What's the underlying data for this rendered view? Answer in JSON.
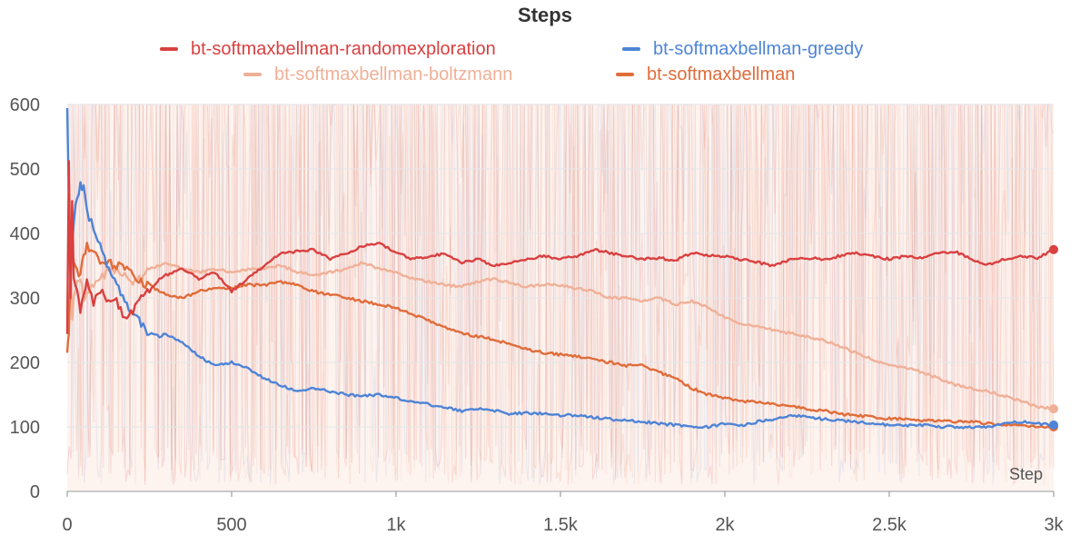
{
  "chart_data": {
    "type": "line",
    "title": "Steps",
    "xlabel": "Step",
    "ylabel": "",
    "xlim": [
      0,
      3000
    ],
    "ylim": [
      0,
      600
    ],
    "x_ticks": [
      {
        "value": 0,
        "label": "0"
      },
      {
        "value": 500,
        "label": "500"
      },
      {
        "value": 1000,
        "label": "1k"
      },
      {
        "value": 1500,
        "label": "1.5k"
      },
      {
        "value": 2000,
        "label": "2k"
      },
      {
        "value": 2500,
        "label": "2.5k"
      },
      {
        "value": 3000,
        "label": "3k"
      }
    ],
    "y_ticks": [
      {
        "value": 0,
        "label": "0"
      },
      {
        "value": 100,
        "label": "100"
      },
      {
        "value": 200,
        "label": "200"
      },
      {
        "value": 300,
        "label": "300"
      },
      {
        "value": 400,
        "label": "400"
      },
      {
        "value": 500,
        "label": "500"
      },
      {
        "value": 600,
        "label": "600"
      }
    ],
    "grid": true,
    "legend_position": "top",
    "series": [
      {
        "name": "bt-softmaxbellman-randomexploration",
        "color": "#d94040",
        "x": [
          0,
          5,
          10,
          15,
          20,
          30,
          40,
          50,
          60,
          80,
          100,
          120,
          150,
          175,
          200,
          225,
          250,
          280,
          300,
          350,
          400,
          450,
          500,
          550,
          600,
          650,
          700,
          750,
          800,
          850,
          900,
          950,
          1000,
          1050,
          1100,
          1150,
          1200,
          1250,
          1300,
          1350,
          1400,
          1450,
          1500,
          1550,
          1600,
          1650,
          1700,
          1750,
          1800,
          1850,
          1900,
          1950,
          2000,
          2050,
          2100,
          2150,
          2200,
          2250,
          2300,
          2350,
          2400,
          2450,
          2500,
          2550,
          2600,
          2650,
          2700,
          2750,
          2800,
          2850,
          2900,
          2950,
          3000
        ],
        "y": [
          250,
          510,
          300,
          450,
          330,
          310,
          280,
          300,
          330,
          290,
          310,
          300,
          295,
          270,
          280,
          300,
          310,
          330,
          335,
          345,
          330,
          340,
          310,
          330,
          350,
          370,
          372,
          375,
          360,
          370,
          380,
          385,
          370,
          360,
          365,
          368,
          355,
          360,
          350,
          355,
          360,
          365,
          360,
          365,
          375,
          370,
          365,
          360,
          362,
          358,
          370,
          365,
          365,
          360,
          355,
          350,
          360,
          362,
          360,
          365,
          370,
          365,
          360,
          365,
          362,
          370,
          372,
          360,
          352,
          360,
          365,
          362,
          375
        ]
      },
      {
        "name": "bt-softmaxbellman-greedy",
        "color": "#4e84d6",
        "x": [
          0,
          5,
          10,
          20,
          30,
          40,
          50,
          60,
          80,
          100,
          120,
          150,
          175,
          200,
          225,
          250,
          280,
          300,
          350,
          400,
          450,
          500,
          550,
          600,
          650,
          700,
          750,
          800,
          850,
          900,
          950,
          1000,
          1050,
          1100,
          1150,
          1200,
          1250,
          1300,
          1350,
          1400,
          1450,
          1500,
          1550,
          1600,
          1650,
          1700,
          1750,
          1800,
          1850,
          1900,
          1950,
          2000,
          2050,
          2100,
          2150,
          2200,
          2250,
          2300,
          2350,
          2400,
          2450,
          2500,
          2550,
          2600,
          2650,
          2700,
          2750,
          2800,
          2850,
          2900,
          2950,
          3000
        ],
        "y": [
          600,
          460,
          340,
          420,
          460,
          475,
          470,
          430,
          410,
          380,
          350,
          320,
          295,
          275,
          260,
          245,
          240,
          245,
          230,
          210,
          195,
          200,
          190,
          175,
          165,
          155,
          160,
          155,
          150,
          148,
          150,
          145,
          140,
          135,
          130,
          125,
          128,
          125,
          120,
          122,
          120,
          118,
          118,
          115,
          112,
          110,
          108,
          105,
          103,
          100,
          100,
          105,
          102,
          108,
          112,
          118,
          115,
          112,
          110,
          108,
          105,
          103,
          102,
          103,
          100,
          100,
          100,
          100,
          105,
          108,
          105,
          103
        ]
      },
      {
        "name": "bt-softmaxbellman-boltzmann",
        "color": "#f0b097",
        "x": [
          0,
          5,
          10,
          15,
          20,
          30,
          40,
          50,
          60,
          80,
          100,
          120,
          150,
          175,
          200,
          225,
          250,
          280,
          300,
          350,
          400,
          450,
          500,
          550,
          600,
          650,
          700,
          750,
          800,
          850,
          900,
          950,
          1000,
          1050,
          1100,
          1150,
          1200,
          1250,
          1300,
          1350,
          1400,
          1450,
          1500,
          1550,
          1600,
          1650,
          1700,
          1750,
          1800,
          1850,
          1900,
          1950,
          2000,
          2050,
          2100,
          2150,
          2200,
          2250,
          2300,
          2350,
          2400,
          2450,
          2500,
          2550,
          2600,
          2650,
          2700,
          2750,
          2800,
          2850,
          2900,
          2950,
          3000
        ],
        "y": [
          300,
          280,
          340,
          260,
          300,
          320,
          330,
          300,
          310,
          320,
          330,
          340,
          345,
          335,
          320,
          330,
          345,
          350,
          355,
          345,
          340,
          345,
          340,
          345,
          345,
          350,
          340,
          335,
          340,
          345,
          355,
          345,
          340,
          330,
          325,
          320,
          318,
          325,
          330,
          322,
          318,
          320,
          320,
          315,
          310,
          300,
          300,
          295,
          300,
          290,
          295,
          285,
          270,
          260,
          255,
          250,
          245,
          240,
          235,
          225,
          215,
          205,
          195,
          192,
          185,
          175,
          165,
          160,
          155,
          148,
          140,
          132,
          128
        ]
      },
      {
        "name": "bt-softmaxbellman",
        "color": "#e06c3a",
        "x": [
          0,
          5,
          10,
          15,
          20,
          30,
          40,
          50,
          60,
          80,
          100,
          120,
          150,
          175,
          200,
          225,
          250,
          280,
          300,
          350,
          400,
          450,
          500,
          550,
          600,
          650,
          700,
          750,
          800,
          850,
          900,
          950,
          1000,
          1050,
          1100,
          1150,
          1200,
          1250,
          1300,
          1350,
          1400,
          1450,
          1500,
          1550,
          1600,
          1650,
          1700,
          1750,
          1800,
          1850,
          1900,
          1950,
          2000,
          2050,
          2100,
          2150,
          2200,
          2250,
          2300,
          2350,
          2400,
          2450,
          2500,
          2550,
          2600,
          2650,
          2700,
          2750,
          2800,
          2850,
          2900,
          2950,
          3000
        ],
        "y": [
          220,
          250,
          330,
          380,
          360,
          350,
          330,
          370,
          380,
          375,
          360,
          355,
          350,
          345,
          340,
          325,
          320,
          310,
          305,
          300,
          310,
          315,
          315,
          320,
          320,
          325,
          320,
          310,
          305,
          300,
          295,
          290,
          285,
          275,
          265,
          255,
          245,
          240,
          235,
          228,
          220,
          215,
          212,
          210,
          205,
          200,
          195,
          195,
          185,
          175,
          160,
          150,
          145,
          140,
          138,
          135,
          132,
          128,
          125,
          120,
          118,
          115,
          113,
          112,
          110,
          110,
          108,
          108,
          105,
          103,
          102,
          101,
          100
        ]
      }
    ]
  }
}
